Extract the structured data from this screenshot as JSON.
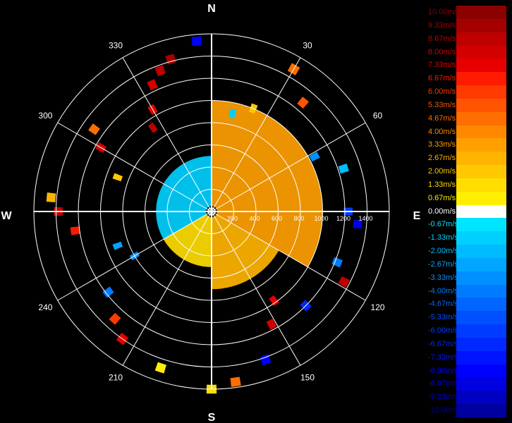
{
  "chart_data": {
    "type": "polar-radial-velocity-map",
    "cardinals": {
      "north": "N",
      "south": "S",
      "east": "E",
      "west": "W"
    },
    "azimuth_labels": [
      "30",
      "60",
      "120",
      "150",
      "210",
      "240",
      "300",
      "330"
    ],
    "range_labels": [
      "200",
      "400",
      "600",
      "800",
      "1000",
      "1200",
      "1400"
    ],
    "range_max": 1600,
    "colorbar": {
      "min": -10.0,
      "max": 10.0,
      "unit": "m/s",
      "labels": [
        "10.00m/s",
        "9.33m/s",
        "8.67m/s",
        "8.00m/s",
        "7.33m/s",
        "6.67m/s",
        "6.00m/s",
        "5.33m/s",
        "4.67m/s",
        "4.00m/s",
        "3.33m/s",
        "2.67m/s",
        "2.00m/s",
        "1.33m/s",
        "0.67m/s",
        "0.00m/s",
        "-0.67m/s",
        "-1.33m/s",
        "-2.00m/s",
        "-2.67m/s",
        "-3.33m/s",
        "-4.00m/s",
        "-4.67m/s",
        "-5.33m/s",
        "-6.00m/s",
        "-6.67m/s",
        "-7.33m/s",
        "-8.00m/s",
        "-8.67m/s",
        "-9.33m/s",
        "-10.00m/s"
      ],
      "colors": [
        "#8b0000",
        "#a50000",
        "#be0000",
        "#d40000",
        "#e80000",
        "#ff1a00",
        "#ff3a00",
        "#ff5500",
        "#ff6e00",
        "#ff8800",
        "#ffa000",
        "#ffb400",
        "#ffc800",
        "#ffdd00",
        "#ffee00",
        "#ffffff",
        "#00e5ff",
        "#00d0ff",
        "#00bbff",
        "#00a6ff",
        "#0090ff",
        "#007bff",
        "#0066ff",
        "#0050ff",
        "#003cff",
        "#0028ff",
        "#0014ff",
        "#0000ff",
        "#0000e0",
        "#0000c0",
        "#0000a0"
      ],
      "label_colors": [
        "#8b0000",
        "#a50000",
        "#be0000",
        "#d40000",
        "#e80000",
        "#ff1a00",
        "#ff3a00",
        "#ff5500",
        "#ff6e00",
        "#ff8800",
        "#ffa000",
        "#ffb400",
        "#ffc800",
        "#ffdd00",
        "#ffee00",
        "#ffffff",
        "#00e5ff",
        "#00d0ff",
        "#00bbff",
        "#00a6ff",
        "#0090ff",
        "#007bff",
        "#0066ff",
        "#0050ff",
        "#003cff",
        "#0028ff",
        "#0014ff",
        "#0000ff",
        "#0000e0",
        "#0000c0",
        "#0000a0"
      ]
    },
    "fields": [
      {
        "az_from": 0,
        "az_to": 120,
        "range_from": 50,
        "range_to": 1000,
        "velocity": 3.3
      },
      {
        "az_from": 120,
        "az_to": 180,
        "range_from": 50,
        "range_to": 700,
        "velocity": 2.7
      },
      {
        "az_from": 180,
        "az_to": 240,
        "range_from": 50,
        "range_to": 500,
        "velocity": 1.6
      },
      {
        "az_from": 240,
        "az_to": 360,
        "range_from": 50,
        "range_to": 500,
        "velocity": -1.3
      }
    ],
    "echoes": [
      {
        "az": 345,
        "range": 1420,
        "velocity": 9.5
      },
      {
        "az": 340,
        "range": 1350,
        "velocity": 8.7
      },
      {
        "az": 335,
        "range": 1260,
        "velocity": 8.0
      },
      {
        "az": 330,
        "range": 1060,
        "velocity": 7.3
      },
      {
        "az": 325,
        "range": 920,
        "velocity": 8.7
      },
      {
        "az": 305,
        "range": 1290,
        "velocity": 4.7
      },
      {
        "az": 300,
        "range": 1150,
        "velocity": 8.0
      },
      {
        "az": 290,
        "range": 900,
        "velocity": 2.0
      },
      {
        "az": 275,
        "range": 1450,
        "velocity": 2.7
      },
      {
        "az": 270,
        "range": 1380,
        "velocity": 8.7
      },
      {
        "az": 262,
        "range": 1240,
        "velocity": 6.7
      },
      {
        "az": 250,
        "range": 900,
        "velocity": -2.7
      },
      {
        "az": 240,
        "range": 800,
        "velocity": -3.3
      },
      {
        "az": 232,
        "range": 1180,
        "velocity": -4.0
      },
      {
        "az": 222,
        "range": 1300,
        "velocity": 6.0
      },
      {
        "az": 215,
        "range": 1400,
        "velocity": 7.3
      },
      {
        "az": 198,
        "range": 1480,
        "velocity": 0.8
      },
      {
        "az": 180,
        "range": 1600,
        "velocity": 1.3
      },
      {
        "az": 172,
        "range": 1550,
        "velocity": 4.7
      },
      {
        "az": 160,
        "range": 1420,
        "velocity": -8.0
      },
      {
        "az": 152,
        "range": 1150,
        "velocity": 8.0
      },
      {
        "az": 145,
        "range": 980,
        "velocity": 7.3
      },
      {
        "az": 135,
        "range": 1200,
        "velocity": -6.7
      },
      {
        "az": 118,
        "range": 1350,
        "velocity": 8.7
      },
      {
        "az": 112,
        "range": 1220,
        "velocity": -4.0
      },
      {
        "az": 95,
        "range": 1320,
        "velocity": -8.7
      },
      {
        "az": 90,
        "range": 1230,
        "velocity": -6.0
      },
      {
        "az": 72,
        "range": 1250,
        "velocity": -2.0
      },
      {
        "az": 62,
        "range": 1050,
        "velocity": -3.3
      },
      {
        "az": 40,
        "range": 1280,
        "velocity": 5.3
      },
      {
        "az": 30,
        "range": 1480,
        "velocity": 4.7
      },
      {
        "az": 22,
        "range": 1000,
        "velocity": 2.0
      },
      {
        "az": 12,
        "range": 900,
        "velocity": -1.3
      },
      {
        "az": 355,
        "range": 1540,
        "velocity": -8.0
      }
    ]
  }
}
